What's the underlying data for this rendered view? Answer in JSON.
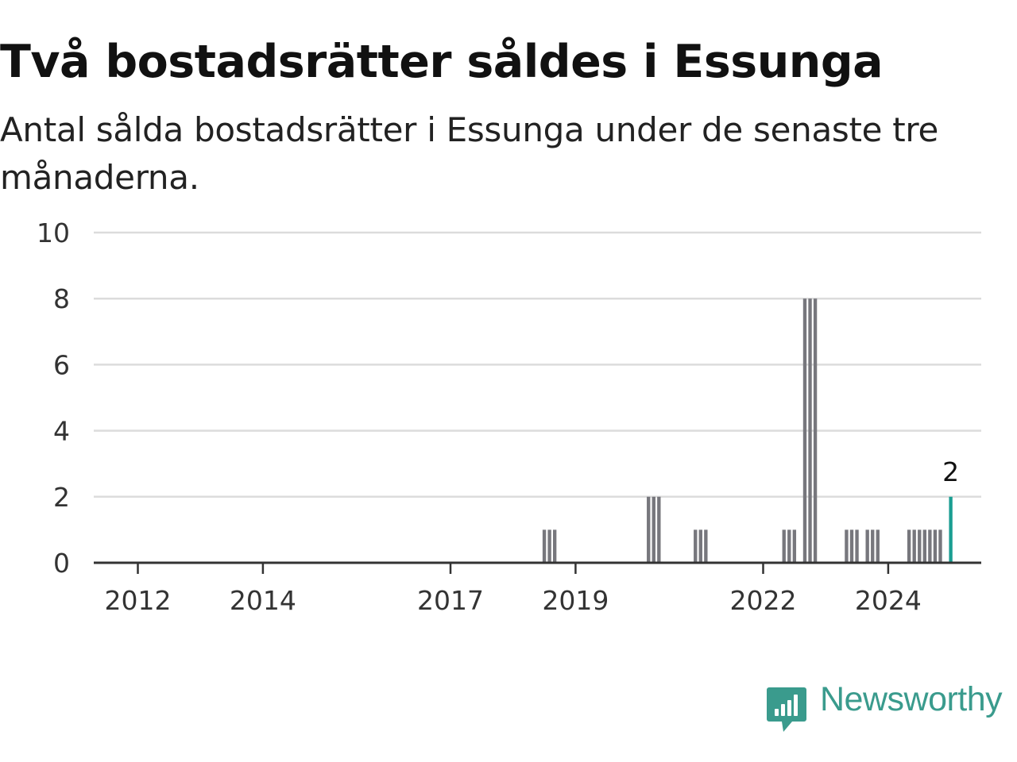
{
  "header": {
    "title": "Två bostadsrätter såldes i Essunga",
    "subtitle": "Antal sålda bostadsrätter i Essunga under de senaste tre månaderna."
  },
  "brand": {
    "name": "Newsworthy",
    "icon": "newsworthy-logo-icon",
    "color": "#3a9b8d"
  },
  "colors": {
    "bar": "#77777d",
    "highlight": "#1a9e92",
    "grid": "#dcdcdc",
    "axis": "#333333"
  },
  "chart_data": {
    "type": "bar",
    "title": "Två bostadsrätter såldes i Essunga",
    "subtitle": "Antal sålda bostadsrätter i Essunga under de senaste tre månaderna.",
    "xlabel": "",
    "ylabel": "",
    "ylim": [
      0,
      10
    ],
    "yticks": [
      0,
      2,
      4,
      6,
      8,
      10
    ],
    "xticks": [
      "2012",
      "2014",
      "2017",
      "2019",
      "2022",
      "2024"
    ],
    "grid": true,
    "legend": "none",
    "x": [
      "2018-07",
      "2018-08",
      "2018-09",
      "2020-03",
      "2020-04",
      "2020-05",
      "2020-12",
      "2021-01",
      "2021-02",
      "2022-05",
      "2022-06",
      "2022-07",
      "2022-09",
      "2022-10",
      "2022-11",
      "2023-05",
      "2023-06",
      "2023-07",
      "2023-09",
      "2023-10",
      "2023-11",
      "2024-05",
      "2024-06",
      "2024-07",
      "2024-08",
      "2024-09",
      "2024-10",
      "2024-11",
      "2025-01"
    ],
    "values": [
      1,
      1,
      1,
      2,
      2,
      2,
      1,
      1,
      1,
      1,
      1,
      1,
      8,
      8,
      8,
      1,
      1,
      1,
      1,
      1,
      1,
      1,
      1,
      1,
      1,
      1,
      1,
      1,
      2
    ],
    "highlight": {
      "x": "2025-01",
      "value": 2,
      "label": "2"
    }
  }
}
